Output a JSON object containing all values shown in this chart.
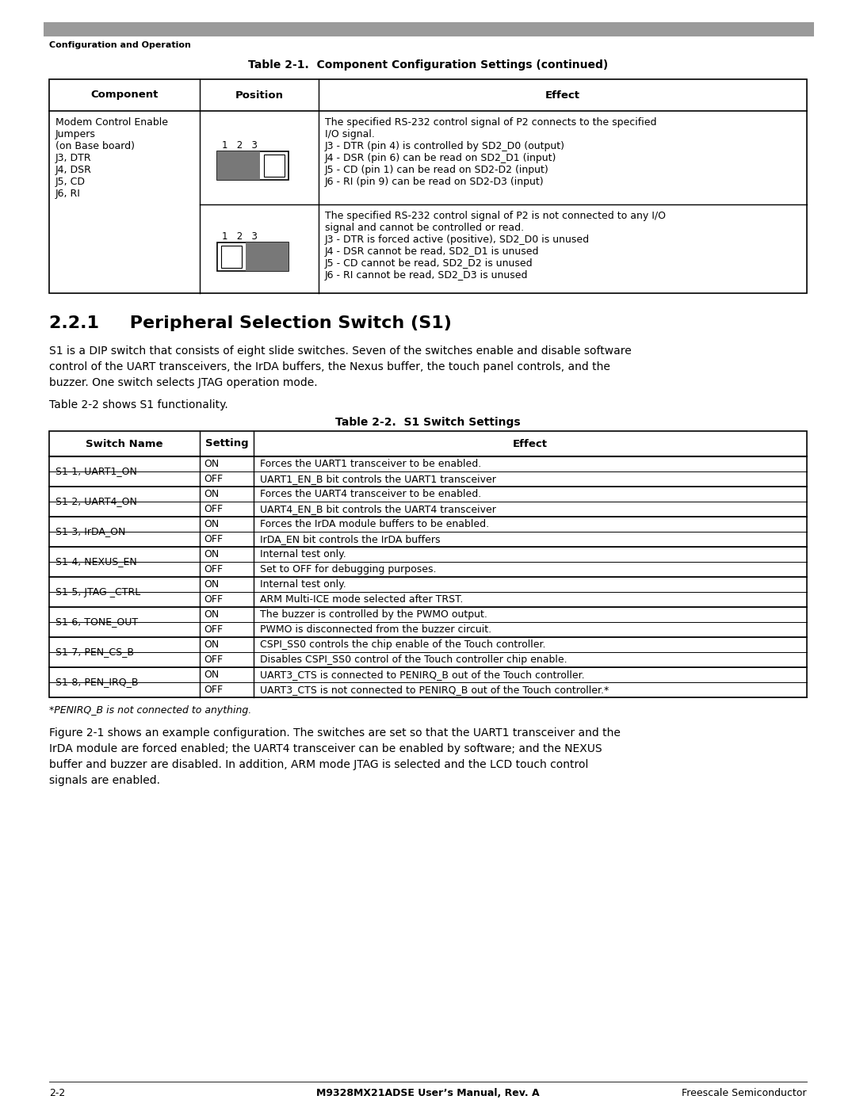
{
  "page_bg": "#ffffff",
  "header_bar_color": "#9a9a9a",
  "header_text": "Configuration and Operation",
  "page_number": "2-2",
  "footer_center": "M9328MX21ADSE User’s Manual, Rev. A",
  "footer_right": "Freescale Semiconductor",
  "table1_title": "Table 2-1.  Component Configuration Settings (continued)",
  "table1_col1_text": [
    "Modem Control Enable",
    "Jumpers",
    "(on Base board)",
    "J3, DTR",
    "J4, DSR",
    "J5, CD",
    "J6, RI"
  ],
  "table1_row1_effect": [
    "The specified RS-232 control signal of P2 connects to the specified",
    "I/O signal.",
    "J3 - DTR (pin 4) is controlled by SD2_D0 (output)",
    "J4 - DSR (pin 6) can be read on SD2_D1 (input)",
    "J5 - CD (pin 1) can be read on SD2-D2 (input)",
    "J6 - RI (pin 9) can be read on SD2-D3 (input)"
  ],
  "table1_row2_effect": [
    "The specified RS-232 control signal of P2 is not connected to any I/O",
    "signal and cannot be controlled or read.",
    "J3 - DTR is forced active (positive), SD2_D0 is unused",
    "J4 - DSR cannot be read, SD2_D1 is unused",
    "J5 - CD cannot be read, SD2_D2 is unused",
    "J6 - RI cannot be read, SD2_D3 is unused"
  ],
  "section_title": "2.2.1     Peripheral Selection Switch (S1)",
  "section_body_lines": [
    "S1 is a DIP switch that consists of eight slide switches. Seven of the switches enable and disable software",
    "control of the UART transceivers, the IrDA buffers, the Nexus buffer, the touch panel controls, and the",
    "buzzer. One switch selects JTAG operation mode."
  ],
  "section_ref": "Table 2-2 shows S1 functionality.",
  "table2_title": "Table 2-2.  S1 Switch Settings",
  "table2_rows": [
    [
      "S1-1, UART1_ON",
      "ON",
      "Forces the UART1 transceiver to be enabled."
    ],
    [
      "S1-1, UART1_ON",
      "OFF",
      "UART1_EN_B bit controls the UART1 transceiver"
    ],
    [
      "S1-2, UART4_ON",
      "ON",
      "Forces the UART4 transceiver to be enabled."
    ],
    [
      "S1-2, UART4_ON",
      "OFF",
      "UART4_EN_B bit controls the UART4 transceiver"
    ],
    [
      "S1-3, IrDA_ON",
      "ON",
      "Forces the IrDA module buffers to be enabled."
    ],
    [
      "S1-3, IrDA_ON",
      "OFF",
      "IrDA_EN bit controls the IrDA buffers"
    ],
    [
      "S1-4, NEXUS_EN",
      "ON",
      "Internal test only."
    ],
    [
      "S1-4, NEXUS_EN",
      "OFF",
      "Set to OFF for debugging purposes."
    ],
    [
      "S1-5, JTAG _CTRL",
      "ON",
      "Internal test only."
    ],
    [
      "S1-5, JTAG _CTRL",
      "OFF",
      "ARM Multi-ICE mode selected after TRST."
    ],
    [
      "S1-6, TONE_OUT",
      "ON",
      "The buzzer is controlled by the PWMO output."
    ],
    [
      "S1-6, TONE_OUT",
      "OFF",
      "PWMO is disconnected from the buzzer circuit."
    ],
    [
      "S1-7, PEN_CS_B",
      "ON",
      "CSPI_SS0 controls the chip enable of the Touch controller."
    ],
    [
      "S1-7, PEN_CS_B",
      "OFF",
      "Disables CSPI_SS0 control of the Touch controller chip enable."
    ],
    [
      "S1-8, PEN_IRQ_B",
      "ON",
      "UART3_CTS is connected to PENIRQ_B out of the Touch controller."
    ],
    [
      "S1-8, PEN_IRQ_B",
      "OFF",
      "UART3_CTS is not connected to PENIRQ_B out of the Touch controller.*"
    ]
  ],
  "table2_footnote": "*PENIRQ_B is not connected to anything.",
  "closing_para_lines": [
    "Figure 2-1 shows an example configuration. The switches are set so that the UART1 transceiver and the",
    "IrDA module are forced enabled; the UART4 transceiver can be enabled by software; and the NEXUS",
    "buffer and buzzer are disabled. In addition, ARM mode JTAG is selected and the LCD touch control",
    "signals are enabled."
  ]
}
